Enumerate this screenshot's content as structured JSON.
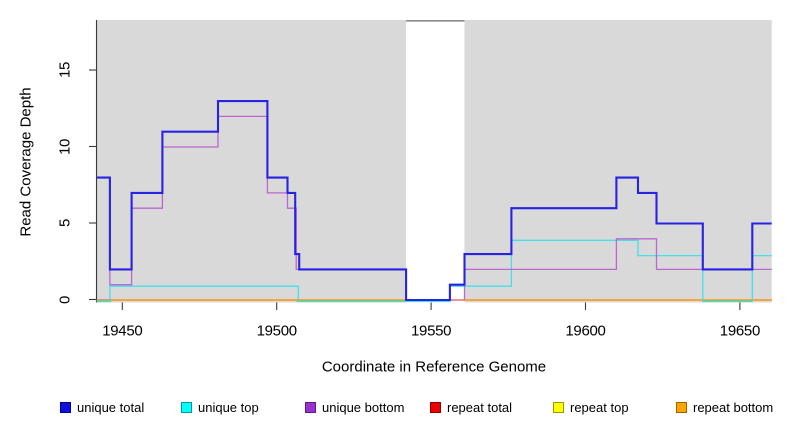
{
  "figure": {
    "background": "#ffffff",
    "panel_background": "#d9d9d9",
    "axis_color": "#3a3a3a",
    "xlabel": "Coordinate in Reference Genome",
    "ylabel": "Read Coverage Depth"
  },
  "legend": {
    "items": [
      {
        "label": "unique total",
        "color": "#0f0fe0",
        "border": "#00008b"
      },
      {
        "label": "unique top",
        "color": "#00ffff",
        "border": "#009a9a"
      },
      {
        "label": "unique bottom",
        "color": "#9b30d0",
        "border": "#5e1b80"
      },
      {
        "label": "repeat total",
        "color": "#ee0000",
        "border": "#8b0000"
      },
      {
        "label": "repeat top",
        "color": "#ffff00",
        "border": "#9a9a00"
      },
      {
        "label": "repeat bottom",
        "color": "#ffa500",
        "border": "#9a6400"
      }
    ]
  },
  "chart_data": {
    "type": "line",
    "step": true,
    "xlabel": "Coordinate in Reference Genome",
    "ylabel": "Read Coverage Depth",
    "xlim": [
      19441.7,
      19660.3
    ],
    "ylim": [
      0,
      18.5
    ],
    "x_ticks": [
      "19450",
      "19500",
      "19550",
      "19600",
      "19650"
    ],
    "y_ticks": [
      "0",
      "5",
      "10",
      "15"
    ],
    "grid": false,
    "legend_position": "bottom",
    "uncovered_region": {
      "from": 19541.9,
      "to": 19560.8,
      "fill": "#ffffff",
      "top_edge_color": "#8a8a8a"
    },
    "series": [
      {
        "name": "repeat top",
        "color": "#f0e832",
        "width": 1.2,
        "dy": 0,
        "paths": [
          [
            [
              19441.7,
              0
            ],
            [
              19660.3,
              0
            ]
          ]
        ]
      },
      {
        "name": "repeat total",
        "color": "#e05a78",
        "width": 1.2,
        "dy": 0,
        "paths": [
          [
            [
              19441.7,
              0
            ],
            [
              19660.3,
              0
            ]
          ]
        ]
      },
      {
        "name": "repeat bottom",
        "color": "#ff9d1e",
        "width": 1.6,
        "dy": 0,
        "paths": [
          [
            [
              19446.5,
              0
            ],
            [
              19541.9,
              0
            ]
          ],
          [
            [
              19560.8,
              0
            ],
            [
              19660.3,
              0
            ]
          ]
        ]
      },
      {
        "name": "unique top",
        "color": "#44dfe8",
        "width": 1.3,
        "dy": 1.5,
        "paths": [
          [
            [
              19441.7,
              0
            ],
            [
              19446,
              1
            ],
            [
              19507,
              0
            ],
            [
              19556.1,
              1
            ],
            [
              19576,
              4
            ],
            [
              19617,
              3
            ],
            [
              19638,
              0
            ],
            [
              19654,
              3
            ],
            [
              19660.3,
              3
            ]
          ]
        ]
      },
      {
        "name": "overlap blend baseline",
        "color": "#7cc87c",
        "width": 1.6,
        "dy": 0.8,
        "paths": [
          [
            [
              19441.7,
              0
            ],
            [
              19446.5,
              0
            ]
          ],
          [
            [
              19506.3,
              0
            ],
            [
              19541.9,
              0
            ]
          ],
          [
            [
              19638,
              0
            ],
            [
              19654,
              0
            ]
          ]
        ]
      },
      {
        "name": "unique bottom",
        "color": "#bd65d0",
        "width": 1.3,
        "dy": 0,
        "paths": [
          [
            [
              19441.7,
              8
            ],
            [
              19446,
              1
            ],
            [
              19453,
              6
            ],
            [
              19463,
              10
            ],
            [
              19481,
              12
            ],
            [
              19497,
              7
            ],
            [
              19503.5,
              6
            ],
            [
              19506.3,
              2
            ],
            [
              19541.9,
              0
            ]
          ],
          [
            [
              19560.8,
              0
            ],
            [
              19560.8,
              2
            ],
            [
              19610,
              4
            ],
            [
              19623,
              2
            ],
            [
              19660.3,
              2
            ]
          ]
        ]
      },
      {
        "name": "unique total",
        "color": "#2823e2",
        "width": 2.1,
        "dy": 0,
        "paths": [
          [
            [
              19441.7,
              8
            ],
            [
              19446,
              2
            ],
            [
              19453,
              7
            ],
            [
              19463,
              11
            ],
            [
              19481,
              13
            ],
            [
              19497,
              8
            ],
            [
              19503.5,
              7
            ],
            [
              19506,
              3
            ],
            [
              19507.3,
              2
            ],
            [
              19541.9,
              0
            ],
            [
              19556.1,
              1
            ],
            [
              19560.8,
              3
            ],
            [
              19576,
              6
            ],
            [
              19610,
              8
            ],
            [
              19617,
              7
            ],
            [
              19623,
              5
            ],
            [
              19638,
              2
            ],
            [
              19654,
              5
            ],
            [
              19660.3,
              5
            ]
          ]
        ]
      }
    ]
  }
}
